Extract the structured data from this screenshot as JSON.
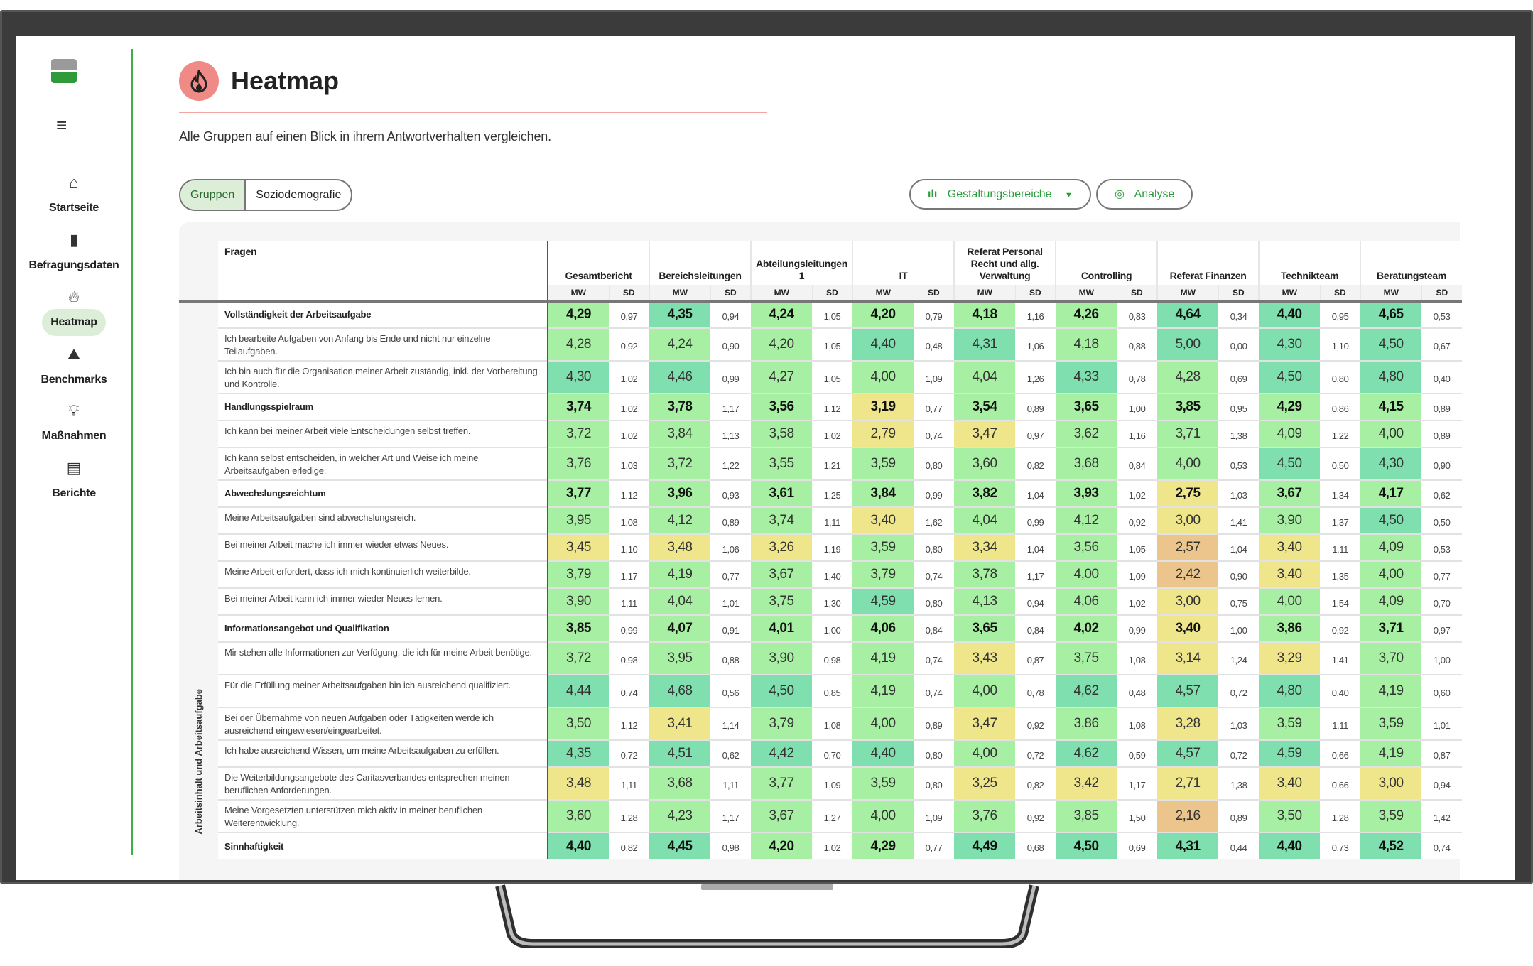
{
  "sidebar": {
    "items": [
      {
        "label": "Startseite",
        "icon": "home-icon",
        "glyph": "⌂"
      },
      {
        "label": "Befragungsdaten",
        "icon": "bar-chart-icon",
        "glyph": "▮"
      },
      {
        "label": "Heatmap",
        "icon": "flame-icon",
        "glyph": "🔥︎",
        "active": true
      },
      {
        "label": "Benchmarks",
        "icon": "mountain-chart-icon",
        "glyph": "⛰"
      },
      {
        "label": "Maßnahmen",
        "icon": "lightbulb-icon",
        "glyph": "💡︎"
      },
      {
        "label": "Berichte",
        "icon": "document-icon",
        "glyph": "▤"
      }
    ]
  },
  "header": {
    "title": "Heatmap",
    "subtitle": "Alle Gruppen auf einen Blick in ihrem Antwortverhalten vergleichen."
  },
  "toggle": {
    "options": [
      "Gruppen",
      "Soziodemografie"
    ],
    "selected": "Gruppen"
  },
  "toolbar": {
    "design_areas_label": "Gestaltungsbereiche",
    "analysis_label": "Analyse"
  },
  "colors": {
    "accent": "#2a9d3a",
    "teal": "#7fdfae",
    "green": "#a7efa2",
    "yellow": "#efe68b",
    "orange": "#ebc58b",
    "title_icon": "#ef8a86"
  },
  "table": {
    "questions_header": "Fragen",
    "category_label": "Arbeitsinhalt und Arbeitsaufgabe",
    "mw_label": "MW",
    "sd_label": "SD",
    "groups": [
      "Gesamtbericht",
      "Bereichsleitungen",
      "Abteilungsleitungen 1",
      "IT",
      "Referat Personal Recht und allg. Verwaltung",
      "Controlling",
      "Referat Finanzen",
      "Technikteam",
      "Beratungsteam"
    ],
    "rows": [
      {
        "label": "Vollständigkeit der Arbeitsaufgabe",
        "bold": true,
        "values": [
          [
            "4,29",
            "0,97"
          ],
          [
            "4,35",
            "0,94"
          ],
          [
            "4,24",
            "1,05"
          ],
          [
            "4,20",
            "0,79"
          ],
          [
            "4,18",
            "1,16"
          ],
          [
            "4,26",
            "0,83"
          ],
          [
            "4,64",
            "0,34"
          ],
          [
            "4,40",
            "0,95"
          ],
          [
            "4,65",
            "0,53"
          ]
        ]
      },
      {
        "label": "Ich bearbeite Aufgaben von Anfang bis Ende und nicht nur einzelne Teilaufgaben.",
        "values": [
          [
            "4,28",
            "0,92"
          ],
          [
            "4,24",
            "0,90"
          ],
          [
            "4,20",
            "1,05"
          ],
          [
            "4,40",
            "0,48"
          ],
          [
            "4,31",
            "1,06"
          ],
          [
            "4,18",
            "0,88"
          ],
          [
            "5,00",
            "0,00"
          ],
          [
            "4,30",
            "1,10"
          ],
          [
            "4,50",
            "0,67"
          ]
        ]
      },
      {
        "label": "Ich bin auch für die Organisation meiner Arbeit zuständig, inkl. der Vorbereitung und Kontrolle.",
        "values": [
          [
            "4,30",
            "1,02"
          ],
          [
            "4,46",
            "0,99"
          ],
          [
            "4,27",
            "1,05"
          ],
          [
            "4,00",
            "1,09"
          ],
          [
            "4,04",
            "1,26"
          ],
          [
            "4,33",
            "0,78"
          ],
          [
            "4,28",
            "0,69"
          ],
          [
            "4,50",
            "0,80"
          ],
          [
            "4,80",
            "0,40"
          ]
        ]
      },
      {
        "label": "Handlungsspielraum",
        "bold": true,
        "values": [
          [
            "3,74",
            "1,02"
          ],
          [
            "3,78",
            "1,17"
          ],
          [
            "3,56",
            "1,12"
          ],
          [
            "3,19",
            "0,77"
          ],
          [
            "3,54",
            "0,89"
          ],
          [
            "3,65",
            "1,00"
          ],
          [
            "3,85",
            "0,95"
          ],
          [
            "4,29",
            "0,86"
          ],
          [
            "4,15",
            "0,89"
          ]
        ]
      },
      {
        "label": "Ich kann bei meiner Arbeit viele Entscheidungen selbst treffen.",
        "values": [
          [
            "3,72",
            "1,02"
          ],
          [
            "3,84",
            "1,13"
          ],
          [
            "3,58",
            "1,02"
          ],
          [
            "2,79",
            "0,74"
          ],
          [
            "3,47",
            "0,97"
          ],
          [
            "3,62",
            "1,16"
          ],
          [
            "3,71",
            "1,38"
          ],
          [
            "4,09",
            "1,22"
          ],
          [
            "4,00",
            "0,89"
          ]
        ]
      },
      {
        "label": "Ich kann selbst entscheiden, in welcher Art und Weise ich meine Arbeitsaufgaben erledige.",
        "values": [
          [
            "3,76",
            "1,03"
          ],
          [
            "3,72",
            "1,22"
          ],
          [
            "3,55",
            "1,21"
          ],
          [
            "3,59",
            "0,80"
          ],
          [
            "3,60",
            "0,82"
          ],
          [
            "3,68",
            "0,84"
          ],
          [
            "4,00",
            "0,53"
          ],
          [
            "4,50",
            "0,50"
          ],
          [
            "4,30",
            "0,90"
          ]
        ]
      },
      {
        "label": "Abwechslungsreichtum",
        "bold": true,
        "values": [
          [
            "3,77",
            "1,12"
          ],
          [
            "3,96",
            "0,93"
          ],
          [
            "3,61",
            "1,25"
          ],
          [
            "3,84",
            "0,99"
          ],
          [
            "3,82",
            "1,04"
          ],
          [
            "3,93",
            "1,02"
          ],
          [
            "2,75",
            "1,03"
          ],
          [
            "3,67",
            "1,34"
          ],
          [
            "4,17",
            "0,62"
          ]
        ]
      },
      {
        "label": "Meine Arbeitsaufgaben sind abwechslungsreich.",
        "values": [
          [
            "3,95",
            "1,08"
          ],
          [
            "4,12",
            "0,89"
          ],
          [
            "3,74",
            "1,11"
          ],
          [
            "3,40",
            "1,62"
          ],
          [
            "4,04",
            "0,99"
          ],
          [
            "4,12",
            "0,92"
          ],
          [
            "3,00",
            "1,41"
          ],
          [
            "3,90",
            "1,37"
          ],
          [
            "4,50",
            "0,50"
          ]
        ]
      },
      {
        "label": "Bei meiner Arbeit mache ich immer wieder etwas Neues.",
        "values": [
          [
            "3,45",
            "1,10"
          ],
          [
            "3,48",
            "1,06"
          ],
          [
            "3,26",
            "1,19"
          ],
          [
            "3,59",
            "0,80"
          ],
          [
            "3,34",
            "1,04"
          ],
          [
            "3,56",
            "1,05"
          ],
          [
            "2,57",
            "1,04"
          ],
          [
            "3,40",
            "1,11"
          ],
          [
            "4,09",
            "0,53"
          ]
        ]
      },
      {
        "label": "Meine Arbeit erfordert, dass ich mich kontinuierlich weiterbilde.",
        "values": [
          [
            "3,79",
            "1,17"
          ],
          [
            "4,19",
            "0,77"
          ],
          [
            "3,67",
            "1,40"
          ],
          [
            "3,79",
            "0,74"
          ],
          [
            "3,78",
            "1,17"
          ],
          [
            "4,00",
            "1,09"
          ],
          [
            "2,42",
            "0,90"
          ],
          [
            "3,40",
            "1,35"
          ],
          [
            "4,00",
            "0,77"
          ]
        ]
      },
      {
        "label": "Bei meiner Arbeit kann ich immer wieder Neues lernen.",
        "values": [
          [
            "3,90",
            "1,11"
          ],
          [
            "4,04",
            "1,01"
          ],
          [
            "3,75",
            "1,30"
          ],
          [
            "4,59",
            "0,80"
          ],
          [
            "4,13",
            "0,94"
          ],
          [
            "4,06",
            "1,02"
          ],
          [
            "3,00",
            "0,75"
          ],
          [
            "4,00",
            "1,54"
          ],
          [
            "4,09",
            "0,70"
          ]
        ]
      },
      {
        "label": "Informationsangebot und Qualifikation",
        "bold": true,
        "values": [
          [
            "3,85",
            "0,99"
          ],
          [
            "4,07",
            "0,91"
          ],
          [
            "4,01",
            "1,00"
          ],
          [
            "4,06",
            "0,84"
          ],
          [
            "3,65",
            "0,84"
          ],
          [
            "4,02",
            "0,99"
          ],
          [
            "3,40",
            "1,00"
          ],
          [
            "3,86",
            "0,92"
          ],
          [
            "3,71",
            "0,97"
          ]
        ]
      },
      {
        "label": "Mir stehen alle Informationen zur Verfügung, die ich für meine Arbeit benötige.",
        "values": [
          [
            "3,72",
            "0,98"
          ],
          [
            "3,95",
            "0,88"
          ],
          [
            "3,90",
            "0,98"
          ],
          [
            "4,19",
            "0,74"
          ],
          [
            "3,43",
            "0,87"
          ],
          [
            "3,75",
            "1,08"
          ],
          [
            "3,14",
            "1,24"
          ],
          [
            "3,29",
            "1,41"
          ],
          [
            "3,70",
            "1,00"
          ]
        ]
      },
      {
        "label": "Für die Erfüllung meiner Arbeitsaufgaben bin ich ausreichend qualifiziert.",
        "values": [
          [
            "4,44",
            "0,74"
          ],
          [
            "4,68",
            "0,56"
          ],
          [
            "4,50",
            "0,85"
          ],
          [
            "4,19",
            "0,74"
          ],
          [
            "4,00",
            "0,78"
          ],
          [
            "4,62",
            "0,48"
          ],
          [
            "4,57",
            "0,72"
          ],
          [
            "4,80",
            "0,40"
          ],
          [
            "4,19",
            "0,60"
          ]
        ]
      },
      {
        "label": "Bei der Übernahme von neuen Aufgaben oder Tätigkeiten werde ich ausreichend eingewiesen/eingearbeitet.",
        "values": [
          [
            "3,50",
            "1,12"
          ],
          [
            "3,41",
            "1,14"
          ],
          [
            "3,79",
            "1,08"
          ],
          [
            "4,00",
            "0,89"
          ],
          [
            "3,47",
            "0,92"
          ],
          [
            "3,86",
            "1,08"
          ],
          [
            "3,28",
            "1,03"
          ],
          [
            "3,59",
            "1,11"
          ],
          [
            "3,59",
            "1,01"
          ]
        ]
      },
      {
        "label": "Ich habe ausreichend Wissen, um meine Arbeitsaufgaben zu erfüllen.",
        "values": [
          [
            "4,35",
            "0,72"
          ],
          [
            "4,51",
            "0,62"
          ],
          [
            "4,42",
            "0,70"
          ],
          [
            "4,40",
            "0,80"
          ],
          [
            "4,00",
            "0,72"
          ],
          [
            "4,62",
            "0,59"
          ],
          [
            "4,57",
            "0,72"
          ],
          [
            "4,59",
            "0,66"
          ],
          [
            "4,19",
            "0,87"
          ]
        ]
      },
      {
        "label": "Die Weiterbildungsangebote des Caritasverbandes entsprechen meinen beruflichen Anforderungen.",
        "values": [
          [
            "3,48",
            "1,11"
          ],
          [
            "3,68",
            "1,11"
          ],
          [
            "3,77",
            "1,09"
          ],
          [
            "3,59",
            "0,80"
          ],
          [
            "3,25",
            "0,82"
          ],
          [
            "3,42",
            "1,17"
          ],
          [
            "2,71",
            "1,38"
          ],
          [
            "3,40",
            "0,66"
          ],
          [
            "3,00",
            "0,94"
          ]
        ]
      },
      {
        "label": "Meine Vorgesetzten unterstützen mich aktiv in meiner beruflichen Weiterentwicklung.",
        "values": [
          [
            "3,60",
            "1,28"
          ],
          [
            "4,23",
            "1,17"
          ],
          [
            "3,67",
            "1,27"
          ],
          [
            "4,00",
            "1,09"
          ],
          [
            "3,76",
            "0,92"
          ],
          [
            "3,85",
            "1,50"
          ],
          [
            "2,16",
            "0,89"
          ],
          [
            "3,50",
            "1,28"
          ],
          [
            "3,59",
            "1,42"
          ]
        ]
      },
      {
        "label": "Sinnhaftigkeit",
        "bold": true,
        "values": [
          [
            "4,40",
            "0,82"
          ],
          [
            "4,45",
            "0,98"
          ],
          [
            "4,20",
            "1,02"
          ],
          [
            "4,29",
            "0,77"
          ],
          [
            "4,49",
            "0,68"
          ],
          [
            "4,50",
            "0,69"
          ],
          [
            "4,31",
            "0,44"
          ],
          [
            "4,40",
            "0,73"
          ],
          [
            "4,52",
            "0,74"
          ]
        ]
      }
    ]
  }
}
